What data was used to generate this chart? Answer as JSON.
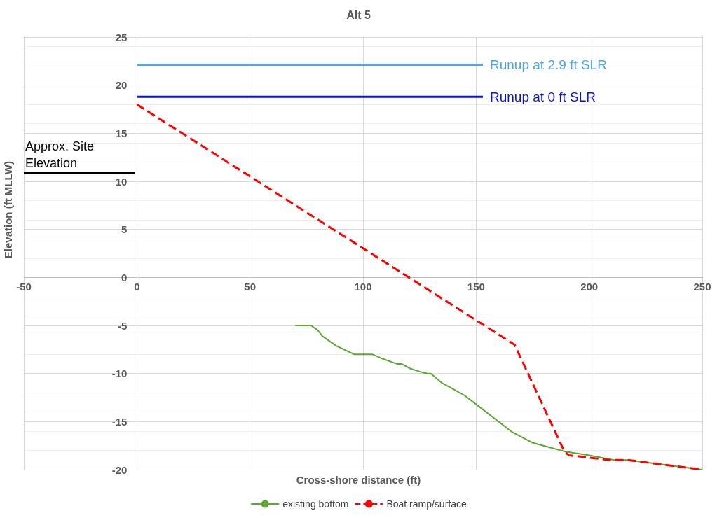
{
  "chart_data": {
    "type": "line",
    "title": "Alt 5",
    "xlabel": "Cross-shore distance (ft)",
    "ylabel": "Elevation (ft MLLW)",
    "xlim": [
      -50,
      250
    ],
    "xticks": [
      -50,
      0,
      50,
      100,
      150,
      200,
      250
    ],
    "ylim": [
      -20,
      25
    ],
    "yticks": [
      -20,
      -15,
      -10,
      -5,
      0,
      5,
      10,
      15,
      20,
      25
    ],
    "grid": true,
    "legend": "bottom",
    "marker": "none",
    "series": [
      {
        "name": "existing bottom",
        "color": "#5aa832",
        "line_style": "solid",
        "x": [
          70,
          77,
          80,
          82,
          88,
          96,
          104,
          108,
          115,
          117,
          121,
          125,
          128.5,
          130,
          135,
          139,
          145,
          150,
          166,
          175,
          189,
          200,
          211,
          217,
          250
        ],
        "values": [
          -5,
          -5,
          -5.5,
          -6.1,
          -7.1,
          -8,
          -8,
          -8.4,
          -9,
          -9,
          -9.5,
          -9.8,
          -10,
          -10,
          -11,
          -11.5,
          -12.3,
          -13.2,
          -16.1,
          -17.2,
          -18.1,
          -18.5,
          -19,
          -19,
          -20
        ]
      },
      {
        "name": "Boat ramp/surface",
        "color": "#ff0000",
        "line_style": "dashed",
        "x": [
          0,
          167,
          189,
          191,
          209,
          217,
          250
        ],
        "values": [
          18,
          -7,
          -18.1,
          -18.5,
          -19,
          -19,
          -20
        ]
      },
      {
        "name": "Runup at 2.9 ft SLR",
        "color": "#4ea6f0",
        "line_style": "solid",
        "x": [
          0,
          153
        ],
        "values": [
          22.1,
          22.1
        ]
      },
      {
        "name": "Runup at 0 ft SLR",
        "color": "#0a14d0",
        "line_style": "solid",
        "x": [
          0,
          153
        ],
        "values": [
          18.8,
          18.8
        ]
      },
      {
        "name": "Approx. Site Elevation",
        "color": "#000000",
        "line_style": "solid",
        "x": [
          -50,
          -1
        ],
        "values": [
          10.9,
          10.9
        ]
      }
    ]
  }
}
